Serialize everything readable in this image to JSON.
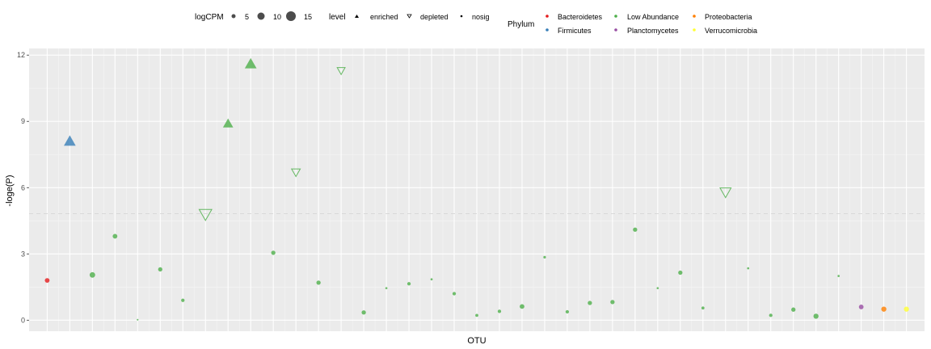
{
  "chart_data": {
    "type": "scatter",
    "xlabel": "OTU",
    "ylabel": "-loge(P)",
    "ylim": [
      -0.5,
      12.3
    ],
    "yticks": [
      "0",
      "3",
      "6",
      "9",
      "12"
    ],
    "threshold_line": 4.82,
    "grid": true,
    "legend_position": "top",
    "legends": {
      "size": {
        "title": "logCPM",
        "entries": [
          {
            "label": "5",
            "value": 5
          },
          {
            "label": "10",
            "value": 10
          },
          {
            "label": "15",
            "value": 15
          }
        ]
      },
      "shape": {
        "title": "level",
        "entries": [
          {
            "label": "enriched",
            "shape": "triangle-up"
          },
          {
            "label": "depleted",
            "shape": "triangle-down-open"
          },
          {
            "label": "nosig",
            "shape": "circle"
          }
        ]
      },
      "color": {
        "title": "Phylum",
        "entries": [
          {
            "label": "Bacteroidetes",
            "color": "#E41A1C"
          },
          {
            "label": "Firmicutes",
            "color": "#377EB8"
          },
          {
            "label": "Low Abundance",
            "color": "#4DAF4A"
          },
          {
            "label": "Planctomycetes",
            "color": "#984EA3"
          },
          {
            "label": "Proteobacteria",
            "color": "#FF7F00"
          },
          {
            "label": "Verrucomicrobia",
            "color": "#FFFF33"
          }
        ]
      }
    },
    "points": [
      {
        "otu": 1,
        "y": 1.8,
        "level": "nosig",
        "phylum": "Bacteroidetes",
        "logCPM": 9
      },
      {
        "otu": 2,
        "y": 8.1,
        "level": "enriched",
        "phylum": "Firmicutes",
        "logCPM": 13
      },
      {
        "otu": 3,
        "y": 2.05,
        "level": "nosig",
        "phylum": "Low Abundance",
        "logCPM": 11
      },
      {
        "otu": 4,
        "y": 3.8,
        "level": "nosig",
        "phylum": "Low Abundance",
        "logCPM": 9
      },
      {
        "otu": 5,
        "y": 0.02,
        "level": "nosig",
        "phylum": "Low Abundance",
        "logCPM": 2
      },
      {
        "otu": 6,
        "y": 2.3,
        "level": "nosig",
        "phylum": "Low Abundance",
        "logCPM": 8
      },
      {
        "otu": 7,
        "y": 0.9,
        "level": "nosig",
        "phylum": "Low Abundance",
        "logCPM": 6
      },
      {
        "otu": 8,
        "y": 4.8,
        "level": "depleted",
        "phylum": "Low Abundance",
        "logCPM": 14
      },
      {
        "otu": 9,
        "y": 8.9,
        "level": "enriched",
        "phylum": "Low Abundance",
        "logCPM": 11
      },
      {
        "otu": 10,
        "y": 11.6,
        "level": "enriched",
        "phylum": "Low Abundance",
        "logCPM": 13
      },
      {
        "otu": 11,
        "y": 3.05,
        "level": "nosig",
        "phylum": "Low Abundance",
        "logCPM": 8
      },
      {
        "otu": 12,
        "y": 6.7,
        "level": "depleted",
        "phylum": "Low Abundance",
        "logCPM": 9
      },
      {
        "otu": 13,
        "y": 1.7,
        "level": "nosig",
        "phylum": "Low Abundance",
        "logCPM": 8
      },
      {
        "otu": 14,
        "y": 11.3,
        "level": "depleted",
        "phylum": "Low Abundance",
        "logCPM": 8
      },
      {
        "otu": 15,
        "y": 0.35,
        "level": "nosig",
        "phylum": "Low Abundance",
        "logCPM": 8
      },
      {
        "otu": 16,
        "y": 1.45,
        "level": "nosig",
        "phylum": "Low Abundance",
        "logCPM": 3
      },
      {
        "otu": 17,
        "y": 1.65,
        "level": "nosig",
        "phylum": "Low Abundance",
        "logCPM": 6
      },
      {
        "otu": 18,
        "y": 1.85,
        "level": "nosig",
        "phylum": "Low Abundance",
        "logCPM": 3
      },
      {
        "otu": 19,
        "y": 1.2,
        "level": "nosig",
        "phylum": "Low Abundance",
        "logCPM": 6
      },
      {
        "otu": 20,
        "y": 0.22,
        "level": "nosig",
        "phylum": "Low Abundance",
        "logCPM": 5
      },
      {
        "otu": 21,
        "y": 0.4,
        "level": "nosig",
        "phylum": "Low Abundance",
        "logCPM": 6
      },
      {
        "otu": 22,
        "y": 0.62,
        "level": "nosig",
        "phylum": "Low Abundance",
        "logCPM": 9
      },
      {
        "otu": 23,
        "y": 2.85,
        "level": "nosig",
        "phylum": "Low Abundance",
        "logCPM": 4
      },
      {
        "otu": 24,
        "y": 0.38,
        "level": "nosig",
        "phylum": "Low Abundance",
        "logCPM": 6
      },
      {
        "otu": 25,
        "y": 0.78,
        "level": "nosig",
        "phylum": "Low Abundance",
        "logCPM": 8
      },
      {
        "otu": 26,
        "y": 0.82,
        "level": "nosig",
        "phylum": "Low Abundance",
        "logCPM": 8
      },
      {
        "otu": 27,
        "y": 4.1,
        "level": "nosig",
        "phylum": "Low Abundance",
        "logCPM": 8
      },
      {
        "otu": 28,
        "y": 1.45,
        "level": "nosig",
        "phylum": "Low Abundance",
        "logCPM": 3
      },
      {
        "otu": 29,
        "y": 2.15,
        "level": "nosig",
        "phylum": "Low Abundance",
        "logCPM": 8
      },
      {
        "otu": 30,
        "y": 0.55,
        "level": "nosig",
        "phylum": "Low Abundance",
        "logCPM": 5
      },
      {
        "otu": 31,
        "y": 5.8,
        "level": "depleted",
        "phylum": "Low Abundance",
        "logCPM": 12
      },
      {
        "otu": 32,
        "y": 2.35,
        "level": "nosig",
        "phylum": "Low Abundance",
        "logCPM": 3
      },
      {
        "otu": 33,
        "y": 0.22,
        "level": "nosig",
        "phylum": "Low Abundance",
        "logCPM": 6
      },
      {
        "otu": 34,
        "y": 0.48,
        "level": "nosig",
        "phylum": "Low Abundance",
        "logCPM": 8
      },
      {
        "otu": 35,
        "y": 0.18,
        "level": "nosig",
        "phylum": "Low Abundance",
        "logCPM": 10
      },
      {
        "otu": 36,
        "y": 2.0,
        "level": "nosig",
        "phylum": "Low Abundance",
        "logCPM": 3
      },
      {
        "otu": 37,
        "y": 0.6,
        "level": "nosig",
        "phylum": "Planctomycetes",
        "logCPM": 9
      },
      {
        "otu": 38,
        "y": 0.5,
        "level": "nosig",
        "phylum": "Proteobacteria",
        "logCPM": 10
      },
      {
        "otu": 39,
        "y": 0.5,
        "level": "nosig",
        "phylum": "Verrucomicrobia",
        "logCPM": 10
      }
    ]
  }
}
